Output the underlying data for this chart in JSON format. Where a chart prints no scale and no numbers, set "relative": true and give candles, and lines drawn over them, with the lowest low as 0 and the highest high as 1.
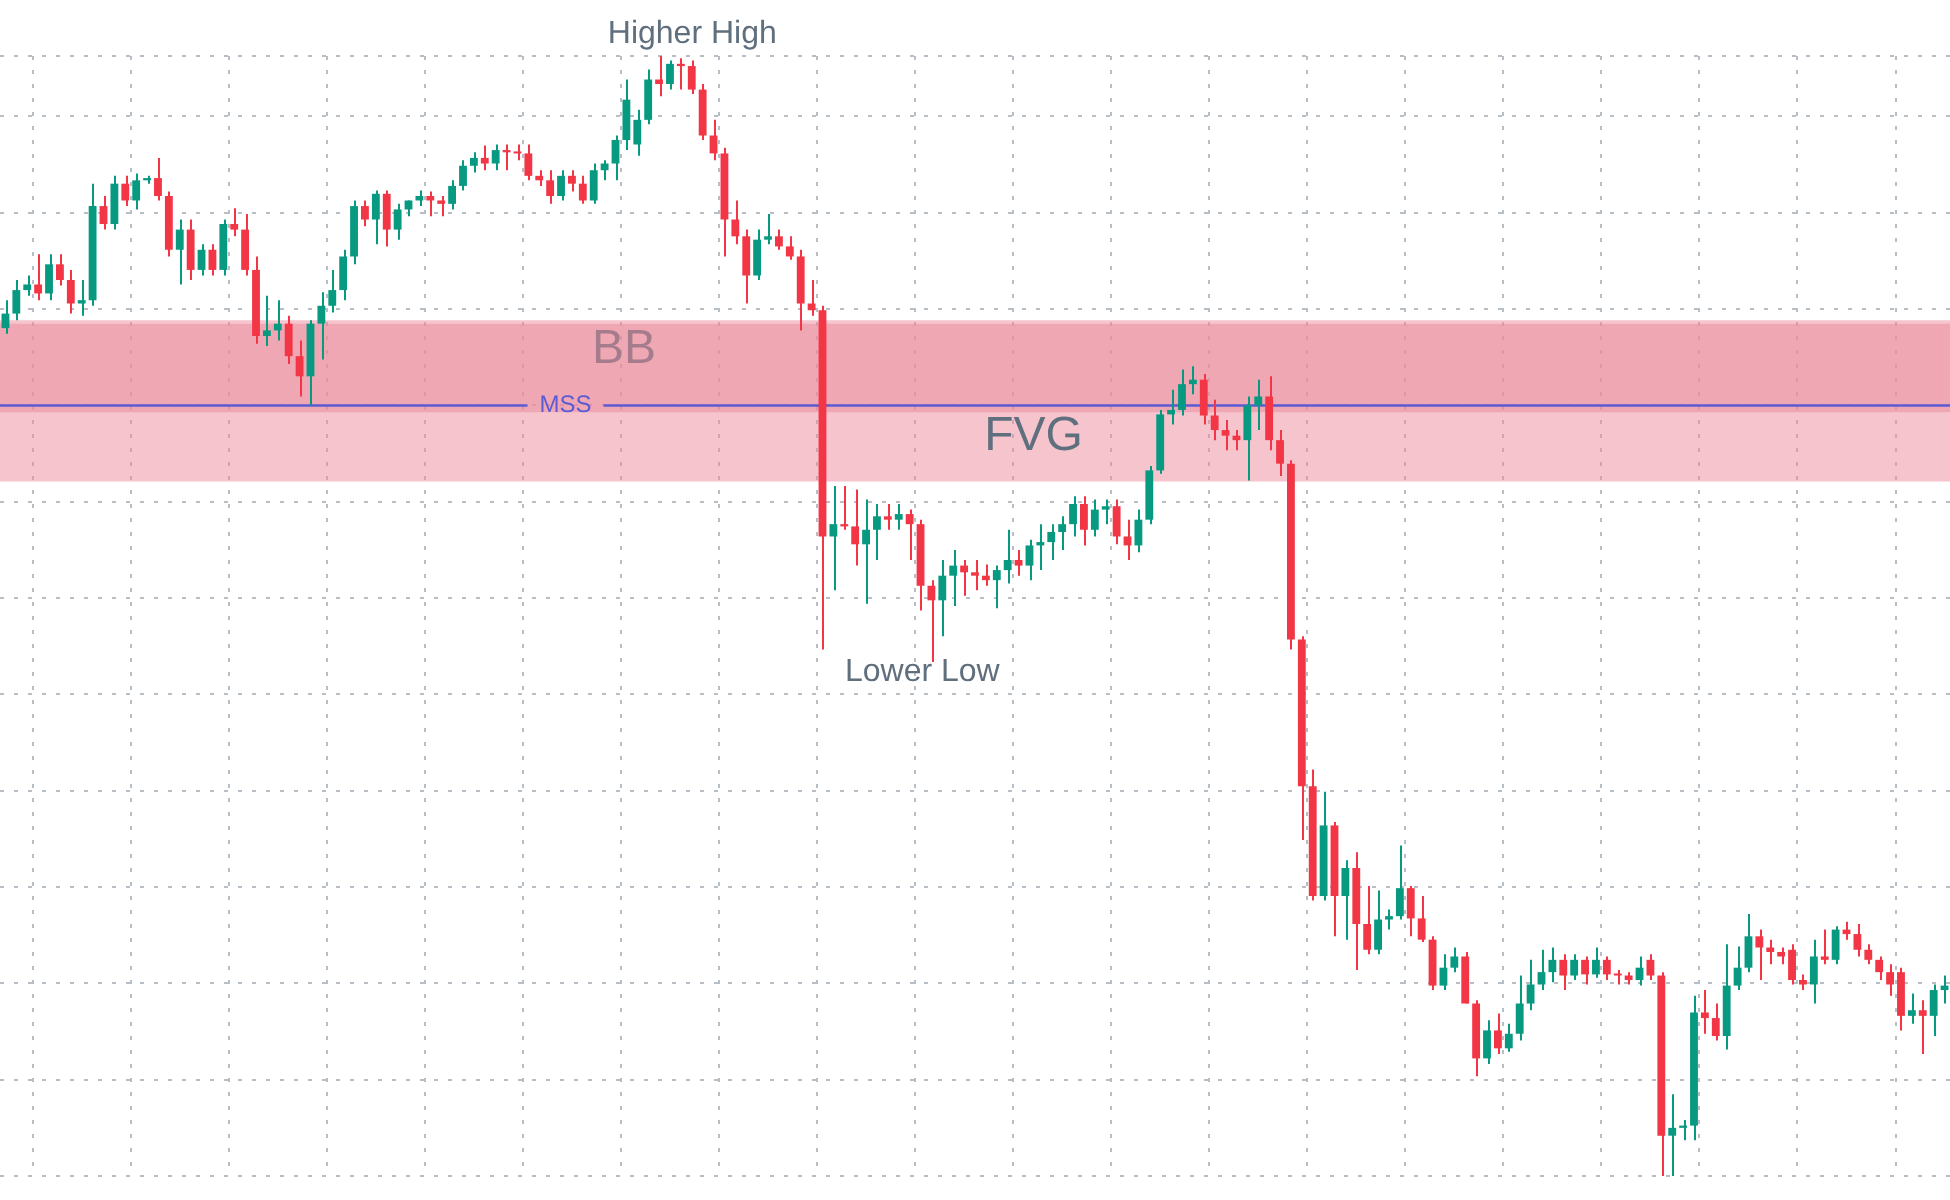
{
  "chart_data": {
    "type": "candlestick",
    "relative": true,
    "grid": true,
    "legend": false,
    "colors": [
      "#089981",
      "#089981",
      "#089981",
      "#f23645",
      "#089981",
      "#f23645",
      "#f23645",
      "#089981",
      "#089981",
      "#f23645",
      "#089981",
      "#f23645",
      "#089981",
      "#089981",
      "#f23645",
      "#f23645",
      "#089981",
      "#f23645",
      "#089981",
      "#f23645",
      "#089981",
      "#f23645",
      "#f23645",
      "#f23645",
      "#089981",
      "#089981",
      "#f23645",
      "#f23645",
      "#089981",
      "#089981",
      "#089981",
      "#089981",
      "#089981",
      "#f23645",
      "#089981",
      "#f23645",
      "#089981",
      "#089981",
      "#089981",
      "#f23645",
      "#f23645",
      "#089981",
      "#089981",
      "#089981",
      "#f23645",
      "#089981",
      "#f23645",
      "#f23645",
      "#f23645",
      "#f23645",
      "#f23645",
      "#089981",
      "#f23645",
      "#f23645",
      "#089981",
      "#089981",
      "#089981",
      "#089981",
      "#089981",
      "#089981",
      "#f23645",
      "#089981",
      "#f23645",
      "#f23645",
      "#f23645",
      "#f23645",
      "#f23645",
      "#f23645",
      "#f23645",
      "#089981",
      "#089981",
      "#f23645",
      "#f23645",
      "#f23645",
      "#f23645",
      "#f23645",
      "#089981",
      "#f23645",
      "#f23645",
      "#089981",
      "#089981",
      "#f23645",
      "#089981",
      "#f23645",
      "#f23645",
      "#f23645",
      "#089981",
      "#089981",
      "#f23645",
      "#f23645",
      "#f23645",
      "#089981",
      "#089981",
      "#f23645",
      "#089981",
      "#089981",
      "#089981",
      "#089981",
      "#089981",
      "#f23645",
      "#089981",
      "#089981",
      "#f23645",
      "#f23645",
      "#089981",
      "#089981",
      "#089981",
      "#089981",
      "#089981",
      "#089981",
      "#f23645",
      "#f23645",
      "#f23645",
      "#f23645",
      "#089981",
      "#089981",
      "#f23645",
      "#f23645",
      "#f23645",
      "#f23645",
      "#f23645",
      "#089981",
      "#f23645",
      "#089981",
      "#f23645",
      "#f23645",
      "#089981",
      "#089981",
      "#089981",
      "#f23645",
      "#f23645",
      "#f23645",
      "#089981",
      "#089981",
      "#f23645",
      "#f23645",
      "#089981",
      "#f23645",
      "#089981",
      "#089981",
      "#089981",
      "#089981",
      "#089981",
      "#f23645",
      "#089981",
      "#f23645",
      "#089981",
      "#f23645",
      "#f23645",
      "#f23645",
      "#089981",
      "#f23645",
      "#f23645",
      "#089981",
      "#089981",
      "#089981",
      "#f23645",
      "#f23645",
      "#089981",
      "#089981",
      "#089981",
      "#f23645",
      "#f23645",
      "#f23645",
      "#f23645",
      "#f23645",
      "#089981",
      "#f23645",
      "#089981",
      "#f23645",
      "#f23645",
      "#f23645",
      "#f23645",
      "#f23645",
      "#f23645",
      "#089981",
      "#f23645",
      "#089981",
      "#089981"
    ],
    "categories": [
      null,
      null,
      null,
      null,
      null,
      null,
      null,
      null,
      null,
      null,
      null,
      null,
      null,
      null,
      null,
      null,
      null,
      null,
      null,
      null,
      null,
      null,
      null,
      null,
      null,
      null,
      null,
      null,
      null,
      null,
      null,
      null,
      null,
      null,
      null,
      null,
      null,
      null,
      null,
      null,
      null,
      null,
      null,
      null,
      null,
      null,
      null,
      null,
      null,
      null,
      null,
      null,
      null,
      null,
      null,
      null,
      null,
      null,
      null,
      null,
      null,
      null,
      null,
      null,
      null,
      null,
      null,
      null,
      null,
      null,
      null,
      null,
      null,
      null,
      null,
      null,
      null,
      null,
      null,
      null,
      null,
      null,
      null,
      null,
      null,
      null,
      null,
      null,
      null,
      null,
      null,
      null,
      null,
      null,
      null,
      null,
      null,
      null,
      null,
      null,
      null,
      null,
      null,
      null,
      null,
      null,
      null,
      null,
      null,
      null,
      null,
      null,
      null,
      null,
      null,
      null,
      null,
      null,
      null,
      null,
      null,
      null,
      null,
      null,
      null,
      null,
      null,
      null,
      null,
      null,
      null,
      null,
      null,
      null,
      null,
      null,
      null,
      null,
      null,
      null,
      null,
      null,
      null,
      null,
      null,
      null,
      null,
      null,
      null,
      null,
      null,
      null,
      null,
      null,
      null,
      null,
      null,
      null,
      null,
      null,
      null,
      null,
      null,
      null,
      null,
      null,
      null,
      null,
      null,
      null,
      null,
      null,
      null,
      null,
      null,
      null,
      null,
      null,
      null
    ],
    "ohlc": [
      [
        0.757,
        0.782,
        0.752,
        0.77
      ],
      [
        0.77,
        0.8,
        0.764,
        0.791
      ],
      [
        0.791,
        0.804,
        0.786,
        0.796
      ],
      [
        0.796,
        0.823,
        0.782,
        0.788
      ],
      [
        0.788,
        0.823,
        0.782,
        0.814
      ],
      [
        0.814,
        0.823,
        0.795,
        0.8
      ],
      [
        0.8,
        0.809,
        0.77,
        0.779
      ],
      [
        0.779,
        0.8,
        0.768,
        0.782
      ],
      [
        0.782,
        0.886,
        0.777,
        0.866
      ],
      [
        0.866,
        0.875,
        0.845,
        0.85
      ],
      [
        0.85,
        0.893,
        0.845,
        0.886
      ],
      [
        0.886,
        0.893,
        0.866,
        0.871
      ],
      [
        0.871,
        0.895,
        0.863,
        0.889
      ],
      [
        0.889,
        0.893,
        0.886,
        0.891
      ],
      [
        0.891,
        0.909,
        0.871,
        0.875
      ],
      [
        0.875,
        0.879,
        0.821,
        0.827
      ],
      [
        0.827,
        0.854,
        0.796,
        0.845
      ],
      [
        0.845,
        0.854,
        0.8,
        0.809
      ],
      [
        0.809,
        0.832,
        0.804,
        0.827
      ],
      [
        0.827,
        0.832,
        0.804,
        0.809
      ],
      [
        0.809,
        0.854,
        0.804,
        0.85
      ],
      [
        0.85,
        0.864,
        0.839,
        0.845
      ],
      [
        0.845,
        0.859,
        0.804,
        0.809
      ],
      [
        0.809,
        0.821,
        0.743,
        0.75
      ],
      [
        0.75,
        0.786,
        0.741,
        0.755
      ],
      [
        0.755,
        0.782,
        0.746,
        0.761
      ],
      [
        0.761,
        0.768,
        0.725,
        0.732
      ],
      [
        0.732,
        0.746,
        0.696,
        0.714
      ],
      [
        0.714,
        0.764,
        0.688,
        0.761
      ],
      [
        0.761,
        0.789,
        0.729,
        0.777
      ],
      [
        0.777,
        0.809,
        0.771,
        0.791
      ],
      [
        0.791,
        0.827,
        0.782,
        0.821
      ],
      [
        0.821,
        0.871,
        0.814,
        0.866
      ],
      [
        0.866,
        0.871,
        0.848,
        0.854
      ],
      [
        0.854,
        0.88,
        0.832,
        0.877
      ],
      [
        0.877,
        0.88,
        0.83,
        0.845
      ],
      [
        0.845,
        0.868,
        0.836,
        0.863
      ],
      [
        0.863,
        0.871,
        0.857,
        0.871
      ],
      [
        0.871,
        0.88,
        0.866,
        0.875
      ],
      [
        0.875,
        0.879,
        0.857,
        0.871
      ],
      [
        0.871,
        0.875,
        0.857,
        0.868
      ],
      [
        0.868,
        0.889,
        0.863,
        0.884
      ],
      [
        0.884,
        0.907,
        0.88,
        0.902
      ],
      [
        0.902,
        0.914,
        0.896,
        0.909
      ],
      [
        0.909,
        0.92,
        0.898,
        0.904
      ],
      [
        0.904,
        0.921,
        0.898,
        0.916
      ],
      [
        0.916,
        0.921,
        0.898,
        0.914
      ],
      [
        0.914,
        0.921,
        0.907,
        0.913
      ],
      [
        0.913,
        0.921,
        0.889,
        0.893
      ],
      [
        0.893,
        0.898,
        0.884,
        0.889
      ],
      [
        0.889,
        0.898,
        0.868,
        0.875
      ],
      [
        0.875,
        0.898,
        0.871,
        0.893
      ],
      [
        0.893,
        0.898,
        0.879,
        0.886
      ],
      [
        0.886,
        0.893,
        0.868,
        0.871
      ],
      [
        0.871,
        0.904,
        0.868,
        0.898
      ],
      [
        0.898,
        0.907,
        0.889,
        0.904
      ],
      [
        0.904,
        0.929,
        0.889,
        0.925
      ],
      [
        0.925,
        0.979,
        0.916,
        0.961
      ],
      [
        0.921,
        0.952,
        0.911,
        0.943
      ],
      [
        0.943,
        0.988,
        0.939,
        0.979
      ],
      [
        0.979,
        1.0,
        0.964,
        0.975
      ],
      [
        0.975,
        0.996,
        0.97,
        0.993
      ],
      [
        0.993,
        0.998,
        0.97,
        0.991
      ],
      [
        0.991,
        0.996,
        0.966,
        0.97
      ],
      [
        0.97,
        0.975,
        0.925,
        0.929
      ],
      [
        0.929,
        0.943,
        0.907,
        0.913
      ],
      [
        0.913,
        0.918,
        0.821,
        0.854
      ],
      [
        0.854,
        0.871,
        0.832,
        0.839
      ],
      [
        0.839,
        0.845,
        0.779,
        0.804
      ],
      [
        0.804,
        0.845,
        0.8,
        0.836
      ],
      [
        0.836,
        0.859,
        0.832,
        0.839
      ],
      [
        0.839,
        0.845,
        0.827,
        0.83
      ],
      [
        0.83,
        0.839,
        0.818,
        0.821
      ],
      [
        0.821,
        0.827,
        0.755,
        0.779
      ],
      [
        0.779,
        0.8,
        0.768,
        0.773
      ],
      [
        0.773,
        0.777,
        0.47,
        0.571
      ],
      [
        0.571,
        0.616,
        0.523,
        0.582
      ],
      [
        0.582,
        0.616,
        0.577,
        0.58
      ],
      [
        0.58,
        0.613,
        0.545,
        0.564
      ],
      [
        0.564,
        0.604,
        0.511,
        0.577
      ],
      [
        0.577,
        0.6,
        0.55,
        0.589
      ],
      [
        0.589,
        0.6,
        0.577,
        0.586
      ],
      [
        0.586,
        0.6,
        0.577,
        0.591
      ],
      [
        0.591,
        0.595,
        0.55,
        0.582
      ],
      [
        0.582,
        0.586,
        0.505,
        0.527
      ],
      [
        0.527,
        0.532,
        0.459,
        0.514
      ],
      [
        0.514,
        0.55,
        0.482,
        0.536
      ],
      [
        0.536,
        0.559,
        0.509,
        0.545
      ],
      [
        0.545,
        0.55,
        0.518,
        0.539
      ],
      [
        0.539,
        0.55,
        0.523,
        0.536
      ],
      [
        0.536,
        0.546,
        0.527,
        0.532
      ],
      [
        0.532,
        0.545,
        0.507,
        0.541
      ],
      [
        0.541,
        0.577,
        0.529,
        0.55
      ],
      [
        0.55,
        0.559,
        0.536,
        0.545
      ],
      [
        0.545,
        0.568,
        0.532,
        0.563
      ],
      [
        0.563,
        0.582,
        0.541,
        0.566
      ],
      [
        0.566,
        0.582,
        0.55,
        0.575
      ],
      [
        0.575,
        0.589,
        0.559,
        0.582
      ],
      [
        0.582,
        0.607,
        0.571,
        0.6
      ],
      [
        0.6,
        0.607,
        0.563,
        0.577
      ],
      [
        0.577,
        0.604,
        0.571,
        0.595
      ],
      [
        0.595,
        0.604,
        0.582,
        0.598
      ],
      [
        0.598,
        0.604,
        0.564,
        0.571
      ],
      [
        0.571,
        0.586,
        0.55,
        0.563
      ],
      [
        0.563,
        0.595,
        0.557,
        0.586
      ],
      [
        0.586,
        0.634,
        0.582,
        0.63
      ],
      [
        0.63,
        0.684,
        0.627,
        0.68
      ],
      [
        0.68,
        0.702,
        0.671,
        0.684
      ],
      [
        0.684,
        0.72,
        0.679,
        0.707
      ],
      [
        0.707,
        0.723,
        0.698,
        0.711
      ],
      [
        0.711,
        0.716,
        0.671,
        0.679
      ],
      [
        0.679,
        0.693,
        0.657,
        0.666
      ],
      [
        0.666,
        0.675,
        0.648,
        0.661
      ],
      [
        0.661,
        0.666,
        0.648,
        0.657
      ],
      [
        0.657,
        0.696,
        0.621,
        0.688
      ],
      [
        0.688,
        0.711,
        0.666,
        0.696
      ],
      [
        0.696,
        0.714,
        0.648,
        0.657
      ],
      [
        0.657,
        0.666,
        0.625,
        0.636
      ],
      [
        0.636,
        0.639,
        0.47,
        0.479
      ],
      [
        0.479,
        0.482,
        0.3,
        0.348
      ],
      [
        0.348,
        0.363,
        0.246,
        0.25
      ],
      [
        0.25,
        0.343,
        0.246,
        0.313
      ],
      [
        0.313,
        0.316,
        0.214,
        0.25
      ],
      [
        0.25,
        0.282,
        0.211,
        0.275
      ],
      [
        0.275,
        0.289,
        0.184,
        0.225
      ],
      [
        0.225,
        0.259,
        0.198,
        0.202
      ],
      [
        0.202,
        0.255,
        0.198,
        0.229
      ],
      [
        0.229,
        0.238,
        0.22,
        0.232
      ],
      [
        0.232,
        0.295,
        0.229,
        0.257
      ],
      [
        0.257,
        0.259,
        0.214,
        0.23
      ],
      [
        0.23,
        0.25,
        0.209,
        0.211
      ],
      [
        0.211,
        0.214,
        0.166,
        0.17
      ],
      [
        0.17,
        0.198,
        0.166,
        0.186
      ],
      [
        0.186,
        0.204,
        0.182,
        0.196
      ],
      [
        0.196,
        0.2,
        0.154,
        0.154
      ],
      [
        0.154,
        0.157,
        0.089,
        0.105
      ],
      [
        0.105,
        0.139,
        0.1,
        0.13
      ],
      [
        0.13,
        0.145,
        0.109,
        0.114
      ],
      [
        0.114,
        0.136,
        0.111,
        0.127
      ],
      [
        0.127,
        0.179,
        0.121,
        0.154
      ],
      [
        0.154,
        0.193,
        0.148,
        0.171
      ],
      [
        0.171,
        0.202,
        0.166,
        0.182
      ],
      [
        0.182,
        0.204,
        0.173,
        0.193
      ],
      [
        0.193,
        0.198,
        0.166,
        0.179
      ],
      [
        0.179,
        0.198,
        0.175,
        0.193
      ],
      [
        0.193,
        0.196,
        0.171,
        0.18
      ],
      [
        0.18,
        0.204,
        0.177,
        0.193
      ],
      [
        0.193,
        0.196,
        0.175,
        0.18
      ],
      [
        0.18,
        0.184,
        0.171,
        0.179
      ],
      [
        0.179,
        0.182,
        0.171,
        0.175
      ],
      [
        0.175,
        0.196,
        0.17,
        0.186
      ],
      [
        0.193,
        0.198,
        0.175,
        0.179
      ],
      [
        0.179,
        0.182,
        0.0,
        0.036
      ],
      [
        0.036,
        0.073,
        0.0,
        0.043
      ],
      [
        0.043,
        0.05,
        0.032,
        0.045
      ],
      [
        0.045,
        0.161,
        0.032,
        0.146
      ],
      [
        0.146,
        0.166,
        0.127,
        0.141
      ],
      [
        0.141,
        0.154,
        0.121,
        0.125
      ],
      [
        0.125,
        0.207,
        0.113,
        0.17
      ],
      [
        0.17,
        0.205,
        0.166,
        0.186
      ],
      [
        0.186,
        0.234,
        0.182,
        0.214
      ],
      [
        0.214,
        0.22,
        0.175,
        0.204
      ],
      [
        0.204,
        0.211,
        0.189,
        0.2
      ],
      [
        0.2,
        0.204,
        0.189,
        0.196
      ],
      [
        0.202,
        0.207,
        0.171,
        0.175
      ],
      [
        0.175,
        0.18,
        0.166,
        0.171
      ],
      [
        0.171,
        0.211,
        0.154,
        0.196
      ],
      [
        0.196,
        0.22,
        0.189,
        0.193
      ],
      [
        0.193,
        0.223,
        0.189,
        0.22
      ],
      [
        0.22,
        0.227,
        0.211,
        0.216
      ],
      [
        0.216,
        0.225,
        0.196,
        0.202
      ],
      [
        0.202,
        0.207,
        0.189,
        0.193
      ],
      [
        0.193,
        0.196,
        0.175,
        0.182
      ],
      [
        0.182,
        0.189,
        0.161,
        0.171
      ],
      [
        0.182,
        0.186,
        0.13,
        0.143
      ],
      [
        0.143,
        0.163,
        0.136,
        0.148
      ],
      [
        0.148,
        0.157,
        0.109,
        0.143
      ],
      [
        0.143,
        0.171,
        0.125,
        0.166
      ],
      [
        0.166,
        0.179,
        0.154,
        0.17
      ]
    ],
    "bands": [
      {
        "axis": "y",
        "from": 0.682,
        "to": 0.761,
        "label": "BB",
        "color": "#eb8a9c"
      },
      {
        "axis": "y",
        "from": 0.62,
        "to": 0.764,
        "label": "FVG",
        "color": "#eb8a9c"
      }
    ],
    "ref_lines": [
      {
        "axis": "y",
        "value": 0.688,
        "label": "MSS",
        "color": "#5b5bd6"
      }
    ],
    "annotations": [
      "Higher High",
      "Lower Low"
    ]
  }
}
